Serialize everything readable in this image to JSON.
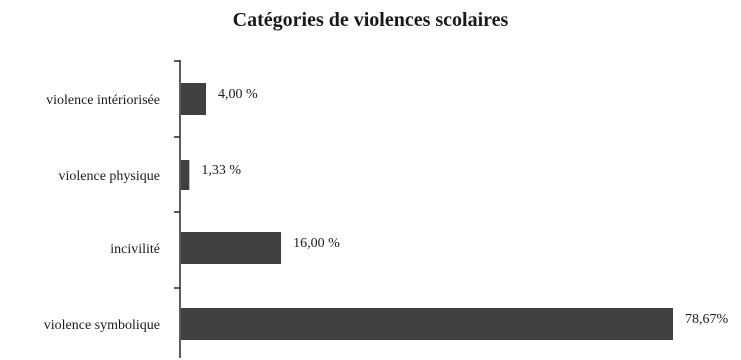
{
  "chart_data": {
    "type": "bar",
    "orientation": "horizontal",
    "title": "Catégories de violences scolaires",
    "categories": [
      "violence intériorisée",
      "violence physique",
      "incivilité",
      "violence symbolique"
    ],
    "values": [
      4.0,
      1.33,
      16.0,
      78.67
    ],
    "data_labels": [
      "4,00 %",
      "1,33 %",
      "16,00 %",
      "78,67%"
    ],
    "xlabel": "",
    "ylabel": "",
    "xlim": [
      0,
      78.67
    ],
    "grid": false,
    "legend": "none",
    "colors": {
      "bar": "#404040",
      "axis": "#333333",
      "text": "#1a1a1a"
    }
  }
}
